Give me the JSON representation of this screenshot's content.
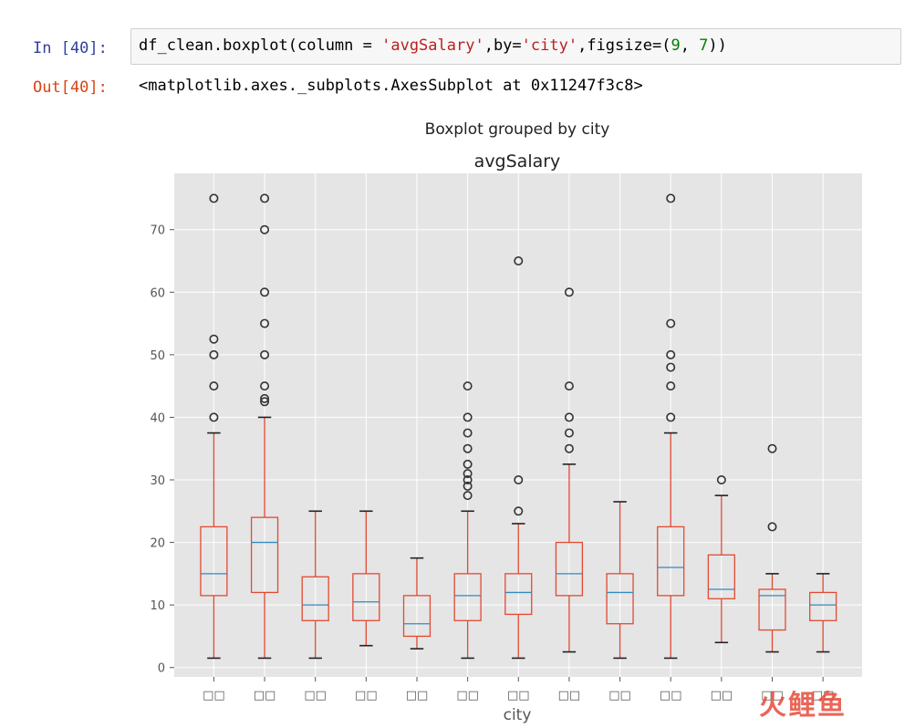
{
  "notebook": {
    "in_prompt": "In [40]:",
    "out_prompt": "Out[40]:",
    "code": {
      "p1": "df_clean.boxplot(column = ",
      "s1": "'avgSalary'",
      "p2": ",by=",
      "s2": "'city'",
      "p3": ",figsize=(",
      "n1": "9",
      "p4": ", ",
      "n2": "7",
      "p5": "))"
    },
    "output": "<matplotlib.axes._subplots.AxesSubplot at 0x11247f3c8>"
  },
  "watermark": "火鲤鱼",
  "colors": {
    "box": "#E24A33",
    "median": "#348ABD",
    "bg": "#E5E5E5",
    "grid": "#FFFFFF",
    "flier": "#333333"
  },
  "chart_data": {
    "type": "box",
    "suptitle": "Boxplot grouped by city",
    "title": "avgSalary",
    "xlabel": "city",
    "ylabel": "",
    "ylim": [
      -1.5,
      79
    ],
    "yticks": [
      0,
      10,
      20,
      30,
      40,
      50,
      60,
      70
    ],
    "categories": [
      "□□",
      "□□",
      "□□",
      "□□",
      "□□",
      "□□",
      "□□",
      "□□",
      "□□",
      "□□",
      "□□",
      "□□",
      "□□"
    ],
    "grid": true,
    "boxes": [
      {
        "whislo": 1.5,
        "q1": 11.5,
        "med": 15,
        "q3": 22.5,
        "whishi": 37.5,
        "fliers": [
          40,
          45,
          50,
          52.5,
          75
        ]
      },
      {
        "whislo": 1.5,
        "q1": 12,
        "med": 20,
        "q3": 24,
        "whishi": 40,
        "fliers": [
          42.5,
          43,
          45,
          50,
          55,
          60,
          70,
          75
        ]
      },
      {
        "whislo": 1.5,
        "q1": 7.5,
        "med": 10,
        "q3": 14.5,
        "whishi": 25,
        "fliers": []
      },
      {
        "whislo": 3.5,
        "q1": 7.5,
        "med": 10.5,
        "q3": 15,
        "whishi": 25,
        "fliers": []
      },
      {
        "whislo": 3,
        "q1": 5,
        "med": 7,
        "q3": 11.5,
        "whishi": 17.5,
        "fliers": []
      },
      {
        "whislo": 1.5,
        "q1": 7.5,
        "med": 11.5,
        "q3": 15,
        "whishi": 25,
        "fliers": [
          27.5,
          29,
          30,
          31,
          32.5,
          35,
          37.5,
          40,
          45
        ]
      },
      {
        "whislo": 1.5,
        "q1": 8.5,
        "med": 12,
        "q3": 15,
        "whishi": 23,
        "fliers": [
          25,
          30,
          65
        ]
      },
      {
        "whislo": 2.5,
        "q1": 11.5,
        "med": 15,
        "q3": 20,
        "whishi": 32.5,
        "fliers": [
          35,
          37.5,
          40,
          45,
          60
        ]
      },
      {
        "whislo": 1.5,
        "q1": 7,
        "med": 12,
        "q3": 15,
        "whishi": 26.5,
        "fliers": []
      },
      {
        "whislo": 1.5,
        "q1": 11.5,
        "med": 16,
        "q3": 22.5,
        "whishi": 37.5,
        "fliers": [
          40,
          45,
          48,
          50,
          55,
          75
        ]
      },
      {
        "whislo": 4,
        "q1": 11,
        "med": 12.5,
        "q3": 18,
        "whishi": 27.5,
        "fliers": [
          30
        ]
      },
      {
        "whislo": 2.5,
        "q1": 6,
        "med": 11.5,
        "q3": 12.5,
        "whishi": 15,
        "fliers": [
          22.5,
          35
        ]
      },
      {
        "whislo": 2.5,
        "q1": 7.5,
        "med": 10,
        "q3": 12,
        "whishi": 15,
        "fliers": []
      }
    ]
  }
}
